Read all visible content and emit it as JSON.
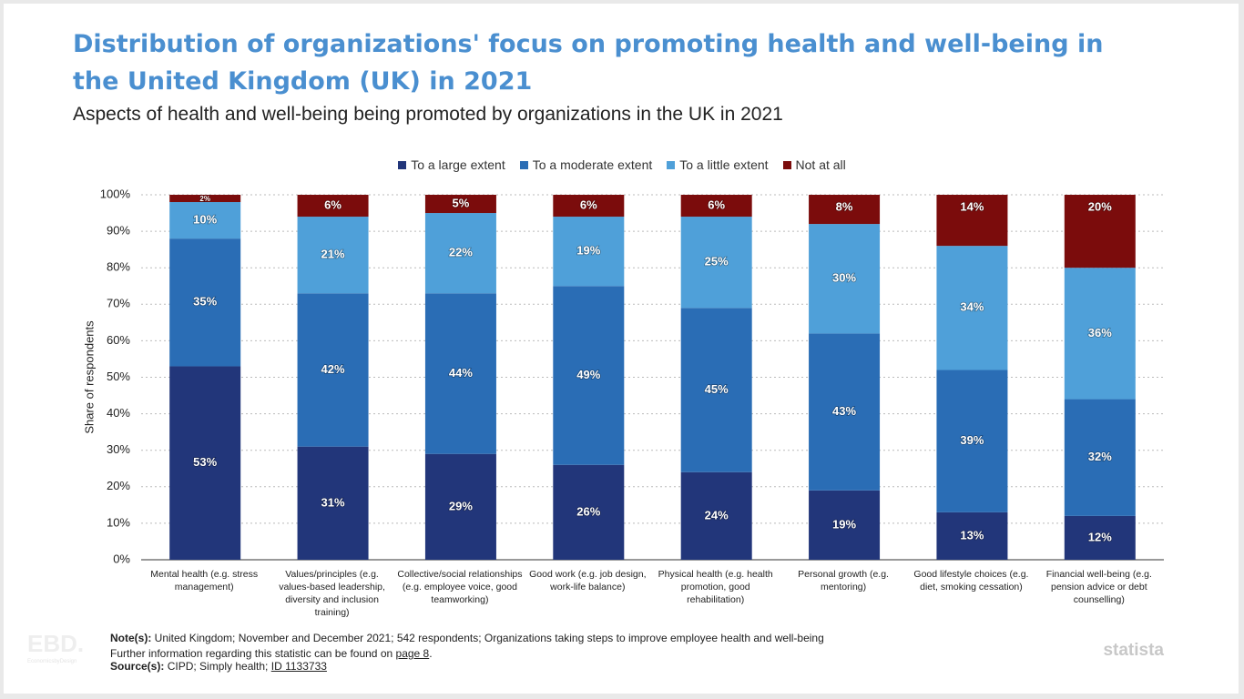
{
  "chart_data": {
    "type": "stacked-bar",
    "title": "Distribution of organizations' focus on promoting health and well-being in the United Kingdom (UK) in 2021",
    "subtitle": "Aspects of health and well-being being promoted by organizations in the UK in 2021",
    "y_label": "Share of respondents",
    "categories": [
      "Mental health (e.g. stress management)",
      "Values/principles (e.g. values-based leadership, diversity and inclusion training)",
      "Collective/social relationships (e.g. employee voice, good teamworking)",
      "Good work (e.g. job design, work-life balance)",
      "Physical health (e.g. health promotion, good rehabilitation)",
      "Personal growth (e.g. mentoring)",
      "Good lifestyle choices (e.g. diet, smoking cessation)",
      "Financial well-being (e.g. pension advice or debt counselling)"
    ],
    "series": [
      {
        "name": "To a large extent",
        "color": "#22367a",
        "values": [
          53,
          31,
          29,
          26,
          24,
          19,
          13,
          12
        ],
        "value_labels": [
          "53%",
          "31%",
          "29%",
          "26%",
          "24%",
          "19%",
          "13%",
          "12%"
        ]
      },
      {
        "name": "To a moderate extent",
        "color": "#2a6db5",
        "values": [
          35,
          42,
          44,
          49,
          45,
          43,
          39,
          32
        ],
        "value_labels": [
          "35%",
          "42%",
          "44%",
          "49%",
          "45%",
          "43%",
          "39%",
          "32%"
        ]
      },
      {
        "name": "To a little extent",
        "color": "#4fa0d9",
        "values": [
          10,
          21,
          22,
          19,
          25,
          30,
          34,
          36
        ],
        "value_labels": [
          "10%",
          "21%",
          "22%",
          "19%",
          "25%",
          "30%",
          "34%",
          "36%"
        ]
      },
      {
        "name": "Not at all",
        "color": "#7b0c0c",
        "values": [
          2,
          6,
          5,
          6,
          6,
          8,
          14,
          20
        ],
        "value_labels": [
          "2%",
          "6%",
          "5%",
          "6%",
          "6%",
          "8%",
          "14%",
          "20%"
        ]
      }
    ],
    "ylim": [
      0,
      100
    ],
    "yticks": [
      {
        "value": 0,
        "label": "0%"
      },
      {
        "value": 10,
        "label": "10%"
      },
      {
        "value": 20,
        "label": "20%"
      },
      {
        "value": 30,
        "label": "30%"
      },
      {
        "value": 40,
        "label": "40%"
      },
      {
        "value": 50,
        "label": "50%"
      },
      {
        "value": 60,
        "label": "60%"
      },
      {
        "value": 70,
        "label": "70%"
      },
      {
        "value": 80,
        "label": "80%"
      },
      {
        "value": 90,
        "label": "90%"
      },
      {
        "value": 100,
        "label": "100%"
      }
    ],
    "grid": true,
    "legend": "top"
  },
  "footer": {
    "notes": {
      "label": "Note(s):",
      "text": "United Kingdom; November and December 2021; 542 respondents; Organizations taking steps to improve employee health and well-being"
    },
    "further": {
      "text": "Further information regarding this statistic can be found on",
      "link": "page 8",
      "suffix": "."
    },
    "sources": {
      "label": "Source(s):",
      "text": "CIPD; Simply health;",
      "link": "ID 1133733"
    },
    "logo": "statista",
    "watermark": "EBD.",
    "watermark_sub": "EconomicsbyDesign"
  }
}
